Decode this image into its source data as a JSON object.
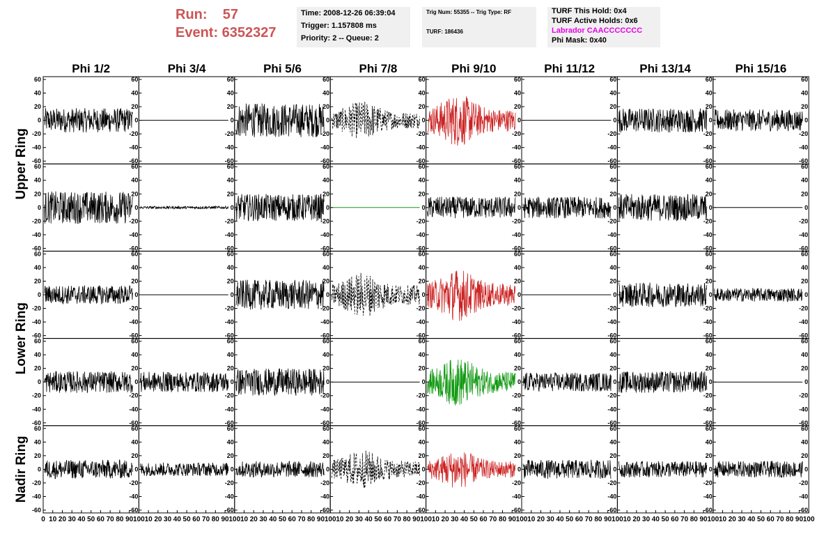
{
  "header": {
    "run_line": "Run:    57",
    "event_line": "Event: 6352327",
    "run_color": "#cc5555"
  },
  "info_box_1": {
    "time": "Time: 2008-12-26 06:39:04",
    "trigger": "Trigger: 1.157808 ms",
    "priority": "Priority: 2 -- Queue: 2"
  },
  "info_box_2": {
    "trig": "Trig Num: 55355 -- Trig Type: RF",
    "turf": "TURF: 186436"
  },
  "info_box_3": {
    "this_hold": "TURF This Hold: 0x4",
    "active_holds": "TURF Active Holds: 0x6",
    "labrador": "Labrador CAACCCCCCC",
    "labrador_color": "#e800e8",
    "phi_mask": "Phi Mask: 0x40"
  },
  "chart_data": {
    "type": "line",
    "columns": [
      "Phi 1/2",
      "Phi 3/4",
      "Phi 5/6",
      "Phi 7/8",
      "Phi 9/10",
      "Phi 11/12",
      "Phi 13/14",
      "Phi 15/16"
    ],
    "row_labels": [
      "Upper Ring",
      "Lower Ring",
      "Nadir Ring"
    ],
    "ylim": [
      -60,
      60
    ],
    "xlim": [
      0,
      100
    ],
    "y_ticks": [
      60,
      40,
      20,
      0,
      -20,
      -40,
      -60
    ],
    "x_tick_labels": [
      "0",
      "10",
      "20",
      "30",
      "40",
      "50",
      "60",
      "70",
      "80",
      "90",
      "100"
    ],
    "panel_rows": 5,
    "colors": {
      "black": "#000000",
      "red": "#cc2222",
      "green": "#119911",
      "flat_green": "#119911"
    },
    "panels": [
      [
        "noise",
        "flat",
        "noise",
        "dashed",
        "red",
        "flat",
        "noise",
        "noise"
      ],
      [
        "noise",
        "small",
        "noise",
        "flat_green",
        "noise",
        "noise",
        "noise",
        "flat"
      ],
      [
        "noise",
        "flat",
        "noise",
        "dashed",
        "red",
        "flat",
        "noise",
        "noise"
      ],
      [
        "noise",
        "noise",
        "noise",
        "flat",
        "green",
        "noise",
        "noise",
        "flat"
      ],
      [
        "noise",
        "noise",
        "noise",
        "dashed",
        "red",
        "noise",
        "noise",
        "noise"
      ]
    ],
    "amplitudes": [
      [
        18,
        0,
        25,
        22,
        30,
        0,
        18,
        16
      ],
      [
        24,
        2,
        20,
        0,
        16,
        16,
        20,
        0
      ],
      [
        14,
        0,
        22,
        26,
        30,
        0,
        18,
        10
      ],
      [
        16,
        15,
        20,
        0,
        28,
        14,
        16,
        0
      ],
      [
        14,
        10,
        12,
        22,
        22,
        14,
        12,
        12
      ]
    ]
  }
}
